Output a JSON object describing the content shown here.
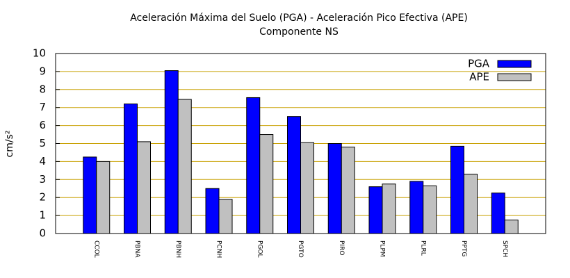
{
  "chart_data": {
    "type": "bar",
    "title": "Aceleración Máxima del Suelo (PGA) -  Aceleración Pico Efectiva (APE)",
    "subtitle": "Componente NS",
    "y_label": "cm/s²",
    "categories": [
      "CCOL",
      "PBNA",
      "PBNH",
      "PCNH",
      "PGOL",
      "PGTO",
      "PIRO",
      "PLPM",
      "PLRL",
      "PPTG",
      "SPCH"
    ],
    "series": [
      {
        "name": "PGA",
        "color": "#0000ff",
        "values": [
          4.25,
          7.2,
          9.05,
          2.5,
          7.55,
          6.5,
          5.0,
          2.6,
          2.9,
          4.85,
          2.25
        ]
      },
      {
        "name": "APE",
        "color": "#c0c0c0",
        "values": [
          4.0,
          5.1,
          7.45,
          1.9,
          5.5,
          5.05,
          4.8,
          2.75,
          2.65,
          3.3,
          0.75
        ]
      }
    ],
    "ylim": [
      0,
      10
    ],
    "yticks": [
      0,
      1,
      2,
      3,
      4,
      5,
      6,
      7,
      8,
      9,
      10
    ],
    "grid": true,
    "grid_color": "#c8a000",
    "legend": "top-right"
  }
}
